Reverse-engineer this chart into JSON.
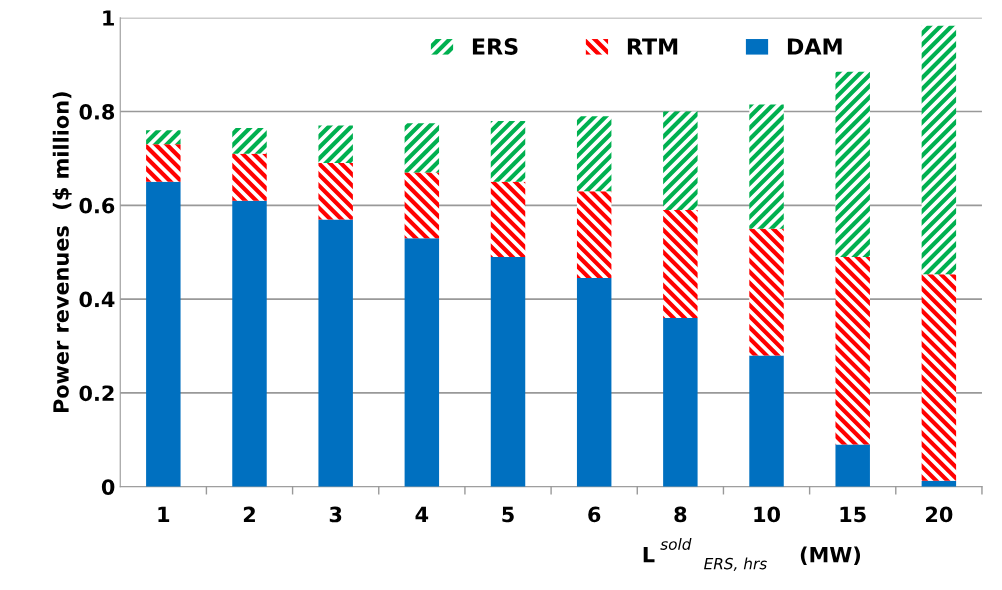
{
  "chart_data": {
    "type": "bar",
    "stacked": true,
    "xlabel": "L$^{sold}$$_{ERS, hrs}$ (MW)",
    "ylabel": "Power revenues  ($ million)",
    "categories": [
      "1",
      "2",
      "3",
      "4",
      "5",
      "6",
      "8",
      "10",
      "15",
      "20"
    ],
    "series": [
      {
        "name": "DAM",
        "color": "#0070c0",
        "values": [
          0.65,
          0.61,
          0.57,
          0.53,
          0.49,
          0.445,
          0.36,
          0.28,
          0.09,
          0.013
        ]
      },
      {
        "name": "RTM",
        "color": "#ff0000",
        "values": [
          0.08,
          0.1,
          0.12,
          0.14,
          0.16,
          0.185,
          0.23,
          0.27,
          0.4,
          0.44
        ]
      },
      {
        "name": "ERS",
        "color": "#00b050",
        "values": [
          0.03,
          0.055,
          0.08,
          0.105,
          0.13,
          0.16,
          0.21,
          0.265,
          0.395,
          0.53
        ]
      }
    ],
    "ylim": [
      0,
      1
    ],
    "yticks": [
      0,
      0.2,
      0.4,
      0.6,
      0.8,
      1
    ],
    "grid": "y",
    "legend": "top"
  }
}
